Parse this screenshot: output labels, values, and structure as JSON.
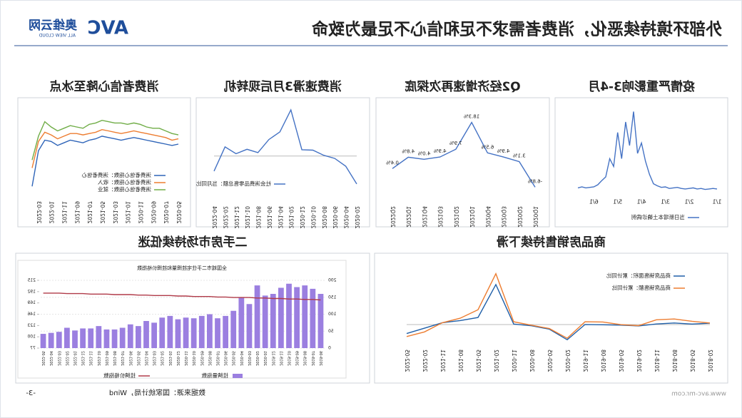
{
  "header": {
    "title": "外部环境持续恶化，消费者需求不足和信心不足最为致命",
    "logo_mark": "AVC",
    "logo_cn": "奥维云网",
    "logo_en": "ALL VIEW CLOUD"
  },
  "footer": {
    "website": "www.avc-mr.com",
    "source": "数据来源：国家统计局，Wind",
    "page": "-3-"
  },
  "chart_data": [
    {
      "type": "line",
      "title": "疫情严重影响3-4月",
      "categories": [
        "1/1",
        null,
        null,
        null,
        null,
        null,
        null,
        "2/1",
        null,
        null,
        null,
        null,
        null,
        "3/1",
        null,
        null,
        null,
        null,
        null,
        "4/1",
        null,
        null,
        null,
        null,
        null,
        "5/1",
        null,
        null,
        null,
        null,
        null,
        "6/1",
        null,
        null,
        null,
        null
      ],
      "series": [
        {
          "name": "当日新增本土确诊病例",
          "color": "#4472c4",
          "values": [
            2,
            3,
            2,
            1,
            3,
            2,
            4,
            3,
            2,
            3,
            5,
            4,
            3,
            6,
            5,
            8,
            12,
            30,
            55,
            90,
            70,
            150,
            85,
            130,
            60,
            110,
            45,
            60,
            25,
            18,
            10,
            6,
            5,
            4,
            6,
            4
          ]
        }
      ]
    },
    {
      "type": "line",
      "title": "Q2经济增速再次探底",
      "categories": [
        "2020Q1",
        "2020Q2",
        "2020Q3",
        "2020Q4",
        "2021Q1",
        "2021Q2",
        "2021Q3",
        "2021Q4",
        "2022Q1",
        "2022Q2"
      ],
      "series": [
        {
          "color": "#4472c4",
          "values": [
            -6.8,
            3.1,
            4.9,
            6.5,
            18.3,
            7.9,
            4.9,
            4.0,
            4.8,
            0.4
          ],
          "value_labels": [
            "-6.8%",
            "3.1%",
            "4.9%",
            "6.5%",
            "18.3%",
            "7.9%",
            "4.9%",
            "4.0%",
            "4.8%",
            "0.4%"
          ]
        }
      ]
    },
    {
      "type": "line",
      "title": "消费速滑3月后现转机",
      "categories": [
        "2020-02",
        "2020-04",
        "2020-06",
        "2020-08",
        "2020-10",
        "2020-12",
        "2021-02",
        "2021-04",
        "2021-06",
        "2021-08",
        "2021-10",
        "2021-12",
        "2022-02",
        "2022-04"
      ],
      "series": [
        {
          "name": "社会消费品零售总额：当月同比",
          "color": "#4472c4",
          "values": [
            -20.5,
            -7.5,
            -1.8,
            0.5,
            4.3,
            4.6,
            33.8,
            17.7,
            12.1,
            2.5,
            4.9,
            1.7,
            6.7,
            -11.1
          ]
        }
      ]
    },
    {
      "type": "line",
      "title": "消费者信心降至冰点",
      "categories": [
        "2020-05",
        null,
        "2020-07",
        null,
        "2020-09",
        null,
        "2020-11",
        null,
        "2021-01",
        null,
        "2021-03",
        null,
        "2021-05",
        null,
        "2021-07",
        null,
        "2021-09",
        null,
        "2021-11",
        null,
        "2022-01",
        null,
        "2022-03",
        null
      ],
      "series": [
        {
          "name": "消费者信心指数：消费者信心",
          "color": "#2e64b8",
          "values": [
            118,
            117,
            118,
            119,
            120,
            121,
            122,
            123,
            122,
            121,
            122,
            123,
            124,
            122,
            121,
            119,
            120,
            121,
            119,
            117,
            120,
            121,
            113,
            86
          ]
        },
        {
          "name": "消费者信心指数：收入",
          "color": "#ed7d31",
          "values": [
            122,
            121,
            123,
            124,
            125,
            126,
            127,
            128,
            127,
            126,
            127,
            128,
            129,
            127,
            126,
            125,
            126,
            126,
            124,
            122,
            125,
            127,
            120,
            100
          ]
        },
        {
          "name": "消费者信心指数：就业",
          "color": "#70ad47",
          "values": [
            125,
            126,
            128,
            130,
            130,
            131,
            133,
            134,
            133,
            134,
            134,
            135,
            136,
            134,
            133,
            130,
            131,
            132,
            130,
            128,
            131,
            135,
            124,
            106
          ]
        }
      ]
    },
    {
      "type": "line",
      "title": "商品房销售持续下滑",
      "categories": [
        "2018-02",
        "2018-05",
        "2018-08",
        "2018-11",
        "2019-02",
        "2019-05",
        "2019-08",
        "2019-11",
        "2020-02",
        "2020-05",
        "2020-08",
        "2020-11",
        "2021-02",
        "2021-05",
        "2021-08",
        "2021-11",
        "2022-02",
        "2022-05"
      ],
      "series": [
        {
          "name": "商品房销售面积：累计同比",
          "color": "#1f5fa8",
          "values": [
            3.6,
            1.3,
            4.0,
            1.4,
            -3.6,
            -1.6,
            -0.6,
            0.2,
            -39.9,
            -12.3,
            -3.3,
            1.3,
            104.9,
            18.5,
            10.5,
            4.8,
            -9.6,
            -23.6
          ]
        },
        {
          "name": "商品房销售额：累计同比",
          "color": "#ed7d31",
          "values": [
            4.1,
            8.6,
            14.5,
            12.5,
            -3.0,
            -0.3,
            6.7,
            7.3,
            -35.9,
            -10.6,
            -1.8,
            7.2,
            133.4,
            38.9,
            16.6,
            4.8,
            -19.3,
            -31.5
          ]
        }
      ]
    },
    {
      "type": "bar",
      "title": "二手房市场持续低迷",
      "subtitle": "全国城市二手住宅挂牌量和挂牌价格指数",
      "categories": [
        "2019-06",
        "2019-07",
        "2019-08",
        "2019-09",
        "2019-10",
        "2019-11",
        "2019-12",
        "2020-01",
        "2020-02",
        "2020-03",
        "2020-04",
        "2020-05",
        "2020-06",
        "2020-07",
        "2020-08",
        "2020-09",
        "2020-10",
        "2020-11",
        "2020-12",
        "2021-01",
        "2021-02",
        "2021-03",
        "2021-04",
        "2021-05",
        "2021-06",
        "2021-07",
        "2021-08",
        "2021-09",
        "2021-10",
        "2021-11",
        "2021-12",
        "2022-01",
        "2022-02",
        "2022-03",
        "2022-04",
        "2022-05"
      ],
      "ylim": [
        0,
        200
      ],
      "yticks": [
        0,
        50,
        100,
        150,
        200
      ],
      "y2lim": [
        77,
        215
      ],
      "y2ticks": [
        77,
        100,
        123,
        146,
        169,
        192,
        215
      ],
      "grid": true,
      "series": [
        {
          "name": "挂牌量指数",
          "type": "bar",
          "color": "#9b7fe0",
          "values": [
            160,
            175,
            185,
            180,
            190,
            178,
            160,
            155,
            185,
            130,
            150,
            110,
            95,
            88,
            100,
            95,
            88,
            90,
            85,
            95,
            90,
            75,
            80,
            65,
            70,
            60,
            55,
            55,
            65,
            58,
            58,
            52,
            60,
            48,
            45,
            42
          ]
        },
        {
          "name": "挂牌价格指数",
          "type": "line",
          "axis": "y2",
          "color": "#b03a48",
          "values": [
            175,
            176,
            176,
            177,
            177,
            178,
            178,
            179,
            179,
            180,
            180,
            180,
            181,
            181,
            182,
            182,
            182,
            183,
            183,
            184,
            184,
            184,
            185,
            185,
            186,
            186,
            186,
            187,
            187,
            187,
            188,
            188,
            188,
            189,
            189,
            189
          ]
        }
      ]
    }
  ]
}
